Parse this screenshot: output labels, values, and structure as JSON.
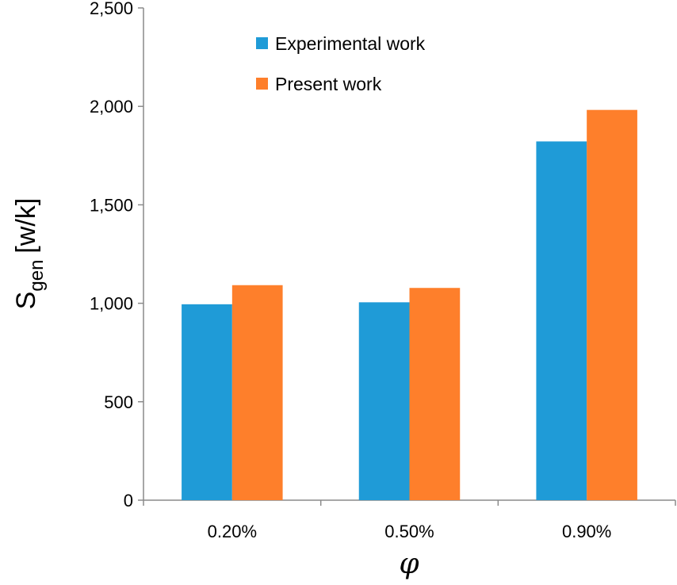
{
  "chart_data": {
    "type": "bar",
    "title": "",
    "categories": [
      "0.20%",
      "0.50%",
      "0.90%"
    ],
    "series": [
      {
        "name": "Experimental work",
        "values": [
          995,
          1005,
          1822
        ],
        "color": "#1f9bd7"
      },
      {
        "name": "Present work",
        "values": [
          1092,
          1078,
          1982
        ],
        "color": "#fe7f2b"
      }
    ],
    "ylim": [
      0,
      2500
    ],
    "yticks": [
      "0",
      "500",
      "1,000",
      "1,500",
      "2,000",
      "2,500"
    ],
    "ytick_values": [
      0,
      500,
      1000,
      1500,
      2000,
      2500
    ],
    "xlabel": "φ",
    "ylabel": {
      "main": "S",
      "sub": "gen",
      "unit": "[w/k]"
    },
    "grid": false,
    "legend_position": "top-center"
  }
}
